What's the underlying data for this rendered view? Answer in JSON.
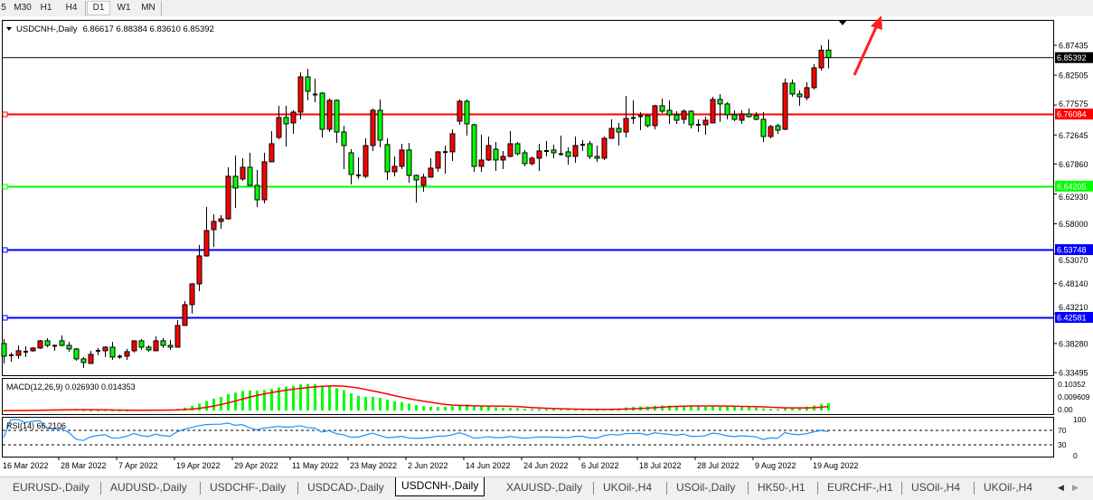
{
  "toolbar": {
    "timeframes": [
      "5",
      "M30",
      "H1",
      "H4",
      "D1",
      "W1",
      "MN"
    ],
    "active": "D1"
  },
  "chart": {
    "symbol_label": "USDCNH-,Daily",
    "ohlc_label": "6.86617 6.88384 6.83610 6.85392",
    "colors": {
      "up": "#ff0000",
      "down": "#00ff00",
      "wick": "#000000",
      "bg": "#ffffff"
    },
    "price_axis": [
      "6.87435",
      "6.82505",
      "6.77575",
      "6.72645",
      "6.67860",
      "6.62930",
      "6.58000",
      "6.53070",
      "6.48140",
      "6.43210",
      "6.38280",
      "6.33495"
    ],
    "price_range": [
      6.33495,
      6.87435
    ],
    "current_price": {
      "value": "6.85392",
      "color": "#000000"
    },
    "levels": [
      {
        "value": "6.76084",
        "color": "#ff0000"
      },
      {
        "value": "6.64205",
        "color": "#00ff00"
      },
      {
        "value": "6.53748",
        "color": "#0000ff"
      },
      {
        "value": "6.42581",
        "color": "#0000ff"
      }
    ],
    "annotation_arrow_color": "#ff2020",
    "dates": [
      "16 Mar 2022",
      "28 Mar 2022",
      "7 Apr 2022",
      "19 Apr 2022",
      "29 Apr 2022",
      "11 May 2022",
      "23 May 2022",
      "2 Jun 2022",
      "14 Jun 2022",
      "24 Jun 2022",
      "6 Jul 2022",
      "18 Jul 2022",
      "28 Jul 2022",
      "9 Aug 2022",
      "19 Aug 2022"
    ],
    "candles_ohlc": [
      [
        6.3827,
        6.3901,
        6.3499,
        6.3619
      ],
      [
        6.3633,
        6.3678,
        6.3529,
        6.364
      ],
      [
        6.3633,
        6.3797,
        6.3574,
        6.3708
      ],
      [
        6.3693,
        6.3782,
        6.3604,
        6.37
      ],
      [
        6.3708,
        6.3767,
        6.3693,
        6.3753
      ],
      [
        6.3753,
        6.3887,
        6.3738,
        6.3872
      ],
      [
        6.3872,
        6.3916,
        6.3767,
        6.3797
      ],
      [
        6.3797,
        6.3812,
        6.3708,
        6.379
      ],
      [
        6.3872,
        6.3961,
        6.3782,
        6.3797
      ],
      [
        6.3797,
        6.3857,
        6.3693,
        6.3738
      ],
      [
        6.3738,
        6.3753,
        6.3544,
        6.3574
      ],
      [
        6.3574,
        6.3604,
        6.3425,
        6.3514
      ],
      [
        6.3499,
        6.3708,
        6.3499,
        6.3648
      ],
      [
        6.3708,
        6.3753,
        6.3633,
        6.3715
      ],
      [
        6.3708,
        6.3782,
        6.3604,
        6.3767
      ],
      [
        6.3767,
        6.3857,
        6.3559,
        6.3604
      ],
      [
        6.3619,
        6.3648,
        6.3574,
        6.3612
      ],
      [
        6.3619,
        6.3738,
        6.3559,
        6.3693
      ],
      [
        6.3708,
        6.3872,
        6.3678,
        6.3872
      ],
      [
        6.3872,
        6.3901,
        6.3723,
        6.3767
      ],
      [
        6.3767,
        6.3797,
        6.3693,
        6.3723
      ],
      [
        6.3708,
        6.3946,
        6.3708,
        6.3872
      ],
      [
        6.3872,
        6.3916,
        6.3753,
        6.3797
      ],
      [
        6.3797,
        6.3887,
        6.3723,
        6.3767
      ],
      [
        6.3767,
        6.4214,
        6.3767,
        6.4125
      ],
      [
        6.4125,
        6.4527,
        6.4125,
        6.4468
      ],
      [
        6.4468,
        6.4825,
        6.4319,
        6.481
      ],
      [
        6.481,
        6.5451,
        6.4691,
        6.5272
      ],
      [
        6.5272,
        6.6077,
        6.5257,
        6.5689
      ],
      [
        6.5704,
        6.5958,
        6.5421,
        6.5839
      ],
      [
        6.5839,
        6.5943,
        6.5719,
        6.5883
      ],
      [
        6.5883,
        6.6732,
        6.5868,
        6.6583
      ],
      [
        6.6583,
        6.6926,
        6.6062,
        6.639
      ],
      [
        6.6539,
        6.6881,
        6.6509,
        6.6732
      ],
      [
        6.6732,
        6.6971,
        6.6434,
        6.6434
      ],
      [
        6.6434,
        6.6688,
        6.6077,
        6.6196
      ],
      [
        6.6196,
        6.6971,
        6.6137,
        6.6822
      ],
      [
        6.6822,
        6.7328,
        6.6822,
        6.712
      ],
      [
        6.7224,
        6.7746,
        6.7194,
        6.7552
      ],
      [
        6.7552,
        6.7746,
        6.7075,
        6.7448
      ],
      [
        6.7463,
        6.7671,
        6.7284,
        6.7641
      ],
      [
        6.7641,
        6.8297,
        6.7522,
        6.8222
      ],
      [
        6.8222,
        6.8357,
        6.7835,
        6.7984
      ],
      [
        6.7939,
        6.8193,
        6.7805,
        6.793
      ],
      [
        6.7954,
        6.7969,
        6.7224,
        6.7358
      ],
      [
        6.7358,
        6.7865,
        6.7313,
        6.7835
      ],
      [
        6.7835,
        6.785,
        6.7135,
        6.7313
      ],
      [
        6.7313,
        6.7418,
        6.6703,
        6.709
      ],
      [
        6.6971,
        6.703,
        6.6449,
        6.6613
      ],
      [
        6.6598,
        6.6896,
        6.6539,
        6.6605
      ],
      [
        6.6583,
        6.7209,
        6.6554,
        6.709
      ],
      [
        6.709,
        6.7701,
        6.7001,
        6.7671
      ],
      [
        6.7671,
        6.785,
        6.706,
        6.7179
      ],
      [
        6.7105,
        6.7209,
        6.6524,
        6.6658
      ],
      [
        6.6658,
        6.6911,
        6.6583,
        6.6747
      ],
      [
        6.6747,
        6.712,
        6.6703,
        6.7016
      ],
      [
        6.7016,
        6.7135,
        6.6479,
        6.6598
      ],
      [
        6.6598,
        6.6613,
        6.6151,
        6.6524
      ],
      [
        6.6434,
        6.6628,
        6.633,
        6.6569
      ],
      [
        6.6569,
        6.6881,
        6.6569,
        6.6718
      ],
      [
        6.6718,
        6.7001,
        6.6658,
        6.6986
      ],
      [
        6.6986,
        6.709,
        6.6628,
        6.699
      ],
      [
        6.6986,
        6.7358,
        6.6837,
        6.7284
      ],
      [
        6.7492,
        6.785,
        6.7433,
        6.782
      ],
      [
        6.782,
        6.785,
        6.7254,
        6.7448
      ],
      [
        6.7433,
        6.7448,
        6.6658,
        6.6747
      ],
      [
        6.6747,
        6.7269,
        6.6658,
        6.6852
      ],
      [
        6.6852,
        6.7239,
        6.6837,
        6.709
      ],
      [
        6.703,
        6.715,
        6.6673,
        6.6852
      ],
      [
        6.6852,
        6.7001,
        6.6703,
        6.6911
      ],
      [
        6.6911,
        6.7328,
        6.6896,
        6.712
      ],
      [
        6.712,
        6.715,
        6.6926,
        6.6956
      ],
      [
        6.6971,
        6.7016,
        6.6747,
        6.6792
      ],
      [
        6.6792,
        6.6911,
        6.6762,
        6.6881
      ],
      [
        6.6881,
        6.712,
        6.6673,
        6.7001
      ],
      [
        6.7001,
        6.7165,
        6.6911,
        6.7008
      ],
      [
        6.7016,
        6.7105,
        6.6881,
        6.6971
      ],
      [
        6.6956,
        6.7254,
        6.6926,
        6.695
      ],
      [
        6.6986,
        6.706,
        6.6777,
        6.6911
      ],
      [
        6.6911,
        6.7239,
        6.6807,
        6.709
      ],
      [
        6.7105,
        6.7179,
        6.7001,
        6.711
      ],
      [
        6.712,
        6.7165,
        6.6866,
        6.6911
      ],
      [
        6.6911,
        6.709,
        6.6822,
        6.6881
      ],
      [
        6.6881,
        6.7239,
        6.6852,
        6.7209
      ],
      [
        6.7209,
        6.7522,
        6.7209,
        6.7373
      ],
      [
        6.7373,
        6.7463,
        6.709,
        6.7313
      ],
      [
        6.7313,
        6.791,
        6.7224,
        6.7537
      ],
      [
        6.7552,
        6.7835,
        6.7448,
        6.7545
      ],
      [
        6.7582,
        6.7641,
        6.7343,
        6.7575
      ],
      [
        6.7582,
        6.759,
        6.7388,
        6.7418
      ],
      [
        6.7418,
        6.7761,
        6.7358,
        6.7746
      ],
      [
        6.7746,
        6.7865,
        6.7626,
        6.7656
      ],
      [
        6.7671,
        6.7835,
        6.7448,
        6.7597
      ],
      [
        6.7597,
        6.7656,
        6.7448,
        6.7507
      ],
      [
        6.7522,
        6.7686,
        6.7448,
        6.7656
      ],
      [
        6.7656,
        6.7671,
        6.7373,
        6.7433
      ],
      [
        6.7433,
        6.7522,
        6.7313,
        6.744
      ],
      [
        6.7433,
        6.7567,
        6.7269,
        6.7507
      ],
      [
        6.7463,
        6.7895,
        6.7463,
        6.785
      ],
      [
        6.785,
        6.7939,
        6.7478,
        6.7776
      ],
      [
        6.7776,
        6.7805,
        6.7522,
        6.7597
      ],
      [
        6.7597,
        6.7671,
        6.7492,
        6.7522
      ],
      [
        6.7507,
        6.7671,
        6.7448,
        6.7612
      ],
      [
        6.7612,
        6.7701,
        6.7552,
        6.7567
      ],
      [
        6.7582,
        6.7641,
        6.7507,
        6.7522
      ],
      [
        6.7522,
        6.7641,
        6.715,
        6.7239
      ],
      [
        6.7239,
        6.7433,
        6.7209,
        6.7403
      ],
      [
        6.7418,
        6.7448,
        6.7284,
        6.7343
      ],
      [
        6.7358,
        6.8193,
        6.7343,
        6.8118
      ],
      [
        6.8118,
        6.8178,
        6.7895,
        6.7939
      ],
      [
        6.7939,
        6.7999,
        6.7746,
        6.7895
      ],
      [
        6.788,
        6.8133,
        6.7835,
        6.8044
      ],
      [
        6.8044,
        6.8431,
        6.8014,
        6.8371
      ],
      [
        6.8371,
        6.8744,
        6.8327,
        6.86617
      ],
      [
        6.86617,
        6.88384,
        6.8361,
        6.85392
      ]
    ]
  },
  "macd": {
    "label": "MACD(12,26,9) 0.026930 0.014353",
    "axis": [
      "0.10352",
      "0.00",
      "0.009609"
    ],
    "range": [
      -0.009609,
      0.10352
    ],
    "histogram_color": "#00ff00",
    "signal_color": "#ff0000"
  },
  "rsi": {
    "label": "RSI(14) 66.2106",
    "axis": [
      "100",
      "70",
      "30",
      "0"
    ],
    "levels": [
      70,
      30
    ],
    "line_color": "#1e90ff"
  },
  "tabs": {
    "items": [
      "EURUSD-,Daily",
      "AUDUSD-,Daily",
      "USDCHF-,Daily",
      "USDCAD-,Daily",
      "USDCNH-,Daily",
      "XAUUSD-,Daily",
      "UKOil-,H4",
      "USOil-,Daily",
      "HK50-,H1",
      "EURCHF-,H1",
      "USOil-,H4",
      "UKOil-,H4"
    ],
    "active": "USDCNH-,Daily"
  }
}
